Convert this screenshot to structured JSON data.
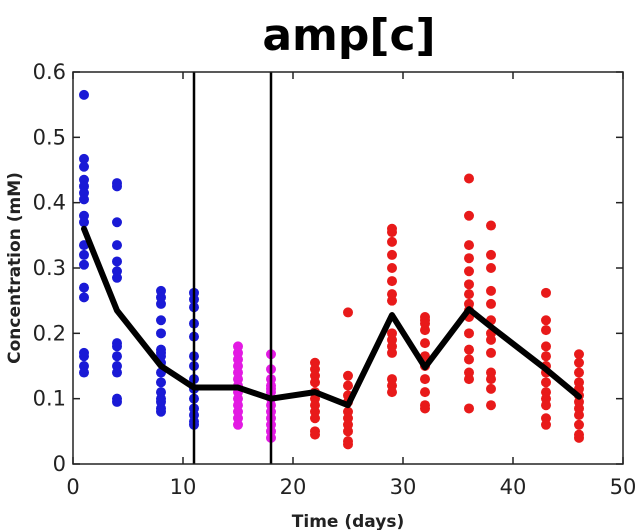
{
  "chart_data": {
    "type": "scatter",
    "title": "amp[c]",
    "xlabel": "Time (days)",
    "ylabel": "Concentration (mM)",
    "xlim": [
      0,
      50
    ],
    "ylim": [
      0,
      0.6
    ],
    "xticks": [
      0,
      10,
      20,
      30,
      40,
      50
    ],
    "yticks": [
      0,
      0.1,
      0.2,
      0.3,
      0.4,
      0.5,
      0.6
    ],
    "grid": false,
    "legend": "none",
    "vertical_lines": [
      11,
      18
    ],
    "series": [
      {
        "color": "#1a1ad6",
        "points": [
          [
            1,
            0.565
          ],
          [
            1,
            0.467
          ],
          [
            1,
            0.455
          ],
          [
            1,
            0.435
          ],
          [
            1,
            0.425
          ],
          [
            1,
            0.415
          ],
          [
            1,
            0.405
          ],
          [
            1,
            0.38
          ],
          [
            1,
            0.37
          ],
          [
            1,
            0.335
          ],
          [
            1,
            0.32
          ],
          [
            1,
            0.305
          ],
          [
            1,
            0.27
          ],
          [
            1,
            0.255
          ],
          [
            1,
            0.17
          ],
          [
            1,
            0.165
          ],
          [
            1,
            0.15
          ],
          [
            1,
            0.14
          ],
          [
            4,
            0.43
          ],
          [
            4,
            0.425
          ],
          [
            4,
            0.37
          ],
          [
            4,
            0.335
          ],
          [
            4,
            0.31
          ],
          [
            4,
            0.295
          ],
          [
            4,
            0.285
          ],
          [
            4,
            0.185
          ],
          [
            4,
            0.18
          ],
          [
            4,
            0.165
          ],
          [
            4,
            0.15
          ],
          [
            4,
            0.14
          ],
          [
            4,
            0.1
          ],
          [
            4,
            0.095
          ],
          [
            8,
            0.265
          ],
          [
            8,
            0.255
          ],
          [
            8,
            0.245
          ],
          [
            8,
            0.22
          ],
          [
            8,
            0.2
          ],
          [
            8,
            0.175
          ],
          [
            8,
            0.17
          ],
          [
            8,
            0.165
          ],
          [
            8,
            0.155
          ],
          [
            8,
            0.14
          ],
          [
            8,
            0.125
          ],
          [
            8,
            0.11
          ],
          [
            8,
            0.1
          ],
          [
            8,
            0.095
          ],
          [
            8,
            0.085
          ],
          [
            8,
            0.08
          ],
          [
            11,
            0.262
          ],
          [
            11,
            0.252
          ],
          [
            11,
            0.24
          ],
          [
            11,
            0.215
          ],
          [
            11,
            0.195
          ],
          [
            11,
            0.165
          ],
          [
            11,
            0.15
          ],
          [
            11,
            0.13
          ],
          [
            11,
            0.115
          ],
          [
            11,
            0.1
          ],
          [
            11,
            0.085
          ],
          [
            11,
            0.075
          ],
          [
            11,
            0.065
          ],
          [
            11,
            0.06
          ]
        ]
      },
      {
        "color": "#e31ae3",
        "points": [
          [
            15,
            0.18
          ],
          [
            15,
            0.17
          ],
          [
            15,
            0.16
          ],
          [
            15,
            0.15
          ],
          [
            15,
            0.14
          ],
          [
            15,
            0.13
          ],
          [
            15,
            0.12
          ],
          [
            15,
            0.11
          ],
          [
            15,
            0.1
          ],
          [
            15,
            0.09
          ],
          [
            15,
            0.08
          ],
          [
            15,
            0.07
          ],
          [
            15,
            0.06
          ],
          [
            18,
            0.168
          ],
          [
            18,
            0.145
          ],
          [
            18,
            0.13
          ],
          [
            18,
            0.12
          ],
          [
            18,
            0.115
          ],
          [
            18,
            0.11
          ],
          [
            18,
            0.1
          ],
          [
            18,
            0.09
          ],
          [
            18,
            0.08
          ],
          [
            18,
            0.07
          ],
          [
            18,
            0.06
          ],
          [
            18,
            0.05
          ],
          [
            18,
            0.04
          ]
        ]
      },
      {
        "color": "#e81a1a",
        "points": [
          [
            22,
            0.155
          ],
          [
            22,
            0.145
          ],
          [
            22,
            0.135
          ],
          [
            22,
            0.125
          ],
          [
            22,
            0.11
          ],
          [
            22,
            0.1
          ],
          [
            22,
            0.09
          ],
          [
            22,
            0.08
          ],
          [
            22,
            0.07
          ],
          [
            22,
            0.05
          ],
          [
            22,
            0.045
          ],
          [
            25,
            0.232
          ],
          [
            25,
            0.135
          ],
          [
            25,
            0.12
          ],
          [
            25,
            0.105
          ],
          [
            25,
            0.095
          ],
          [
            25,
            0.08
          ],
          [
            25,
            0.07
          ],
          [
            25,
            0.06
          ],
          [
            25,
            0.05
          ],
          [
            25,
            0.035
          ],
          [
            25,
            0.03
          ],
          [
            29,
            0.36
          ],
          [
            29,
            0.355
          ],
          [
            29,
            0.34
          ],
          [
            29,
            0.32
          ],
          [
            29,
            0.3
          ],
          [
            29,
            0.28
          ],
          [
            29,
            0.26
          ],
          [
            29,
            0.25
          ],
          [
            29,
            0.2
          ],
          [
            29,
            0.19
          ],
          [
            29,
            0.18
          ],
          [
            29,
            0.17
          ],
          [
            29,
            0.13
          ],
          [
            29,
            0.12
          ],
          [
            29,
            0.11
          ],
          [
            32,
            0.225
          ],
          [
            32,
            0.22
          ],
          [
            32,
            0.215
          ],
          [
            32,
            0.205
          ],
          [
            32,
            0.185
          ],
          [
            32,
            0.165
          ],
          [
            32,
            0.15
          ],
          [
            32,
            0.13
          ],
          [
            32,
            0.11
          ],
          [
            32,
            0.09
          ],
          [
            32,
            0.085
          ],
          [
            36,
            0.437
          ],
          [
            36,
            0.38
          ],
          [
            36,
            0.335
          ],
          [
            36,
            0.315
          ],
          [
            36,
            0.295
          ],
          [
            36,
            0.275
          ],
          [
            36,
            0.26
          ],
          [
            36,
            0.245
          ],
          [
            36,
            0.235
          ],
          [
            36,
            0.225
          ],
          [
            36,
            0.2
          ],
          [
            36,
            0.175
          ],
          [
            36,
            0.16
          ],
          [
            36,
            0.14
          ],
          [
            36,
            0.13
          ],
          [
            36,
            0.085
          ],
          [
            38,
            0.365
          ],
          [
            38,
            0.32
          ],
          [
            38,
            0.3
          ],
          [
            38,
            0.265
          ],
          [
            38,
            0.245
          ],
          [
            38,
            0.22
          ],
          [
            38,
            0.2
          ],
          [
            38,
            0.19
          ],
          [
            38,
            0.17
          ],
          [
            38,
            0.14
          ],
          [
            38,
            0.13
          ],
          [
            38,
            0.115
          ],
          [
            38,
            0.09
          ],
          [
            43,
            0.262
          ],
          [
            43,
            0.22
          ],
          [
            43,
            0.205
          ],
          [
            43,
            0.18
          ],
          [
            43,
            0.165
          ],
          [
            43,
            0.15
          ],
          [
            43,
            0.14
          ],
          [
            43,
            0.125
          ],
          [
            43,
            0.11
          ],
          [
            43,
            0.1
          ],
          [
            43,
            0.09
          ],
          [
            43,
            0.07
          ],
          [
            43,
            0.06
          ],
          [
            46,
            0.168
          ],
          [
            46,
            0.155
          ],
          [
            46,
            0.14
          ],
          [
            46,
            0.125
          ],
          [
            46,
            0.115
          ],
          [
            46,
            0.105
          ],
          [
            46,
            0.095
          ],
          [
            46,
            0.085
          ],
          [
            46,
            0.075
          ],
          [
            46,
            0.06
          ],
          [
            46,
            0.045
          ],
          [
            46,
            0.04
          ]
        ]
      }
    ],
    "mean_line": {
      "color": "#000000",
      "x": [
        1,
        4,
        8,
        11,
        15,
        18,
        22,
        25,
        29,
        32,
        36,
        38,
        43,
        46
      ],
      "y": [
        0.36,
        0.235,
        0.15,
        0.117,
        0.117,
        0.1,
        0.11,
        0.09,
        0.228,
        0.148,
        0.237,
        0.21,
        0.145,
        0.103
      ]
    }
  }
}
